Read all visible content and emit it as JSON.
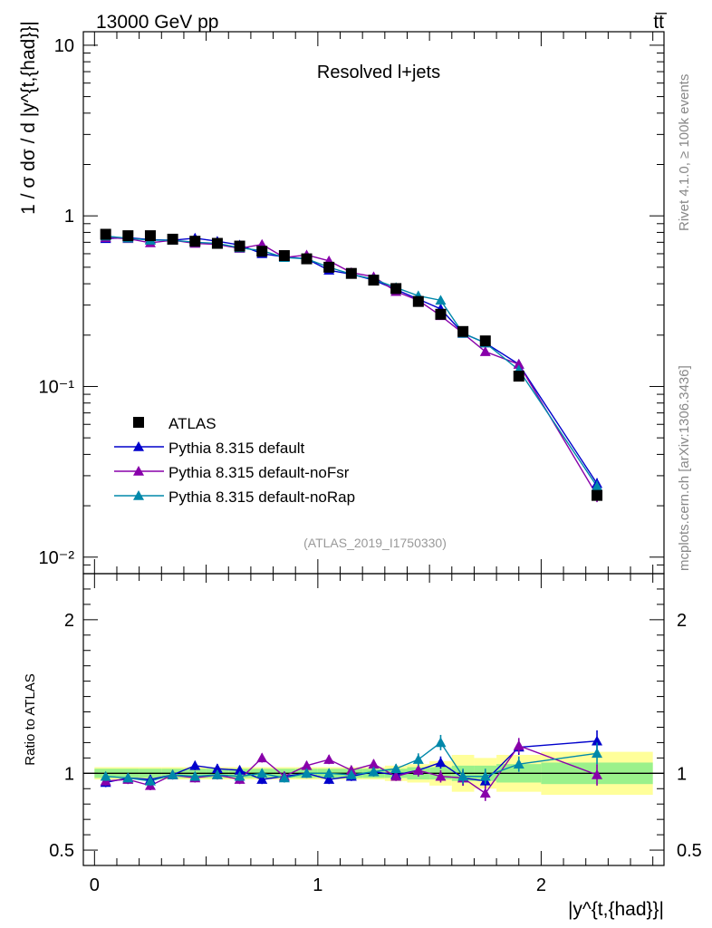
{
  "header": {
    "left": "13000 GeV pp",
    "right": "tt̅"
  },
  "side_text": {
    "rivet": "Rivet 4.1.0, ≥ 100k events",
    "mcplots": "mcplots.cern.ch [arXiv:1306.3436]"
  },
  "chart_data": [
    {
      "type": "scatter",
      "title": "Resolved l+jets",
      "analysis_tag": "(ATLAS_2019_I1750330)",
      "ylabel": "1 / σ dσ / d |y^{t,{had}}|",
      "yscale": "log",
      "ylim": [
        0.008,
        12
      ],
      "xlim": [
        -0.05,
        2.55
      ],
      "y_ticks": [
        {
          "value": 10,
          "label": "10"
        },
        {
          "value": 1,
          "label": "1"
        },
        {
          "value": 0.1,
          "label": "10⁻¹"
        },
        {
          "value": 0.01,
          "label": "10⁻²"
        }
      ],
      "legend_position": "lower-left",
      "x": [
        0.05,
        0.15,
        0.25,
        0.35,
        0.45,
        0.55,
        0.65,
        0.75,
        0.85,
        0.95,
        1.05,
        1.15,
        1.25,
        1.35,
        1.45,
        1.55,
        1.65,
        1.75,
        1.9,
        2.25
      ],
      "data": {
        "name": "ATLAS",
        "values": [
          0.78,
          0.765,
          0.765,
          0.73,
          0.71,
          0.69,
          0.665,
          0.62,
          0.585,
          0.56,
          0.5,
          0.46,
          0.42,
          0.375,
          0.315,
          0.265,
          0.21,
          0.185,
          0.115,
          0.023
        ],
        "errors": [
          0.03,
          0.03,
          0.03,
          0.03,
          0.03,
          0.03,
          0.02,
          0.02,
          0.02,
          0.02,
          0.02,
          0.02,
          0.015,
          0.015,
          0.012,
          0.012,
          0.01,
          0.01,
          0.006,
          0.0015
        ]
      },
      "series": [
        {
          "name": "Pythia 8.315 default",
          "color": "#0000cc",
          "values": [
            0.735,
            0.745,
            0.725,
            0.72,
            0.74,
            0.71,
            0.675,
            0.6,
            0.575,
            0.56,
            0.48,
            0.455,
            0.42,
            0.37,
            0.325,
            0.285,
            0.205,
            0.18,
            0.135,
            0.027
          ],
          "errors": [
            0.02,
            0.02,
            0.02,
            0.02,
            0.02,
            0.02,
            0.02,
            0.02,
            0.015,
            0.015,
            0.015,
            0.015,
            0.012,
            0.012,
            0.01,
            0.01,
            0.008,
            0.008,
            0.006,
            0.002
          ]
        },
        {
          "name": "Pythia 8.315 default-noFsr",
          "color": "#8800aa",
          "values": [
            0.745,
            0.735,
            0.695,
            0.72,
            0.69,
            0.68,
            0.645,
            0.68,
            0.57,
            0.59,
            0.545,
            0.465,
            0.44,
            0.36,
            0.32,
            0.26,
            0.205,
            0.16,
            0.135,
            0.023
          ],
          "errors": [
            0.02,
            0.02,
            0.02,
            0.02,
            0.02,
            0.02,
            0.02,
            0.02,
            0.015,
            0.015,
            0.015,
            0.015,
            0.012,
            0.012,
            0.01,
            0.01,
            0.008,
            0.008,
            0.006,
            0.002
          ]
        },
        {
          "name": "Pythia 8.315 default-noRap",
          "color": "#0088aa",
          "values": [
            0.76,
            0.74,
            0.72,
            0.72,
            0.7,
            0.69,
            0.65,
            0.625,
            0.57,
            0.56,
            0.5,
            0.455,
            0.425,
            0.38,
            0.34,
            0.32,
            0.205,
            0.18,
            0.125,
            0.026
          ],
          "errors": [
            0.02,
            0.02,
            0.02,
            0.02,
            0.02,
            0.02,
            0.02,
            0.02,
            0.015,
            0.015,
            0.015,
            0.015,
            0.012,
            0.012,
            0.01,
            0.01,
            0.008,
            0.008,
            0.006,
            0.002
          ]
        }
      ]
    },
    {
      "type": "scatter",
      "ylabel": "Ratio to ATLAS",
      "xlabel": "|y^{t,{had}}|",
      "xlim": [
        -0.05,
        2.55
      ],
      "ylim": [
        0.4,
        2.3
      ],
      "x_ticks": [
        {
          "value": 0,
          "label": "0"
        },
        {
          "value": 1,
          "label": "1"
        },
        {
          "value": 2,
          "label": "2"
        }
      ],
      "y_ticks": [
        {
          "value": 0.5,
          "label": "0.5"
        },
        {
          "value": 1,
          "label": "1"
        },
        {
          "value": 2,
          "label": "2"
        }
      ],
      "bins": [
        [
          0,
          0.1
        ],
        [
          0.1,
          0.2
        ],
        [
          0.2,
          0.3
        ],
        [
          0.3,
          0.4
        ],
        [
          0.4,
          0.5
        ],
        [
          0.5,
          0.6
        ],
        [
          0.6,
          0.7
        ],
        [
          0.7,
          0.8
        ],
        [
          0.8,
          0.9
        ],
        [
          0.9,
          1.0
        ],
        [
          1.0,
          1.1
        ],
        [
          1.1,
          1.2
        ],
        [
          1.2,
          1.3
        ],
        [
          1.3,
          1.4
        ],
        [
          1.4,
          1.5
        ],
        [
          1.5,
          1.6
        ],
        [
          1.6,
          1.7
        ],
        [
          1.7,
          1.8
        ],
        [
          1.8,
          2.0
        ],
        [
          2.0,
          2.5
        ]
      ],
      "stat_band": [
        0.03,
        0.03,
        0.03,
        0.03,
        0.03,
        0.03,
        0.03,
        0.03,
        0.03,
        0.03,
        0.03,
        0.03,
        0.03,
        0.03,
        0.04,
        0.04,
        0.05,
        0.05,
        0.06,
        0.07
      ],
      "total_band": [
        0.04,
        0.04,
        0.04,
        0.04,
        0.04,
        0.04,
        0.04,
        0.04,
        0.04,
        0.04,
        0.04,
        0.04,
        0.04,
        0.05,
        0.06,
        0.08,
        0.12,
        0.1,
        0.12,
        0.14
      ],
      "x": [
        0.05,
        0.15,
        0.25,
        0.35,
        0.45,
        0.55,
        0.65,
        0.75,
        0.85,
        0.95,
        1.05,
        1.15,
        1.25,
        1.35,
        1.45,
        1.55,
        1.65,
        1.75,
        1.9,
        2.25
      ],
      "series": [
        {
          "name": "Pythia 8.315 default",
          "color": "#0000cc",
          "values": [
            0.94,
            0.97,
            0.96,
            0.99,
            1.05,
            1.03,
            1.02,
            0.96,
            0.98,
            1.0,
            0.96,
            0.98,
            1.01,
            0.99,
            1.02,
            1.07,
            0.97,
            0.95,
            1.17,
            1.21
          ],
          "errors": [
            0.03,
            0.03,
            0.03,
            0.03,
            0.03,
            0.03,
            0.03,
            0.03,
            0.03,
            0.03,
            0.03,
            0.03,
            0.03,
            0.03,
            0.04,
            0.04,
            0.05,
            0.05,
            0.05,
            0.07
          ]
        },
        {
          "name": "Pythia 8.315 default-noFsr",
          "color": "#8800aa",
          "values": [
            0.95,
            0.96,
            0.92,
            0.99,
            0.97,
            0.99,
            0.96,
            1.1,
            0.98,
            1.05,
            1.09,
            1.02,
            1.06,
            0.98,
            1.02,
            0.98,
            0.97,
            0.87,
            1.18,
            0.99
          ],
          "errors": [
            0.03,
            0.03,
            0.03,
            0.03,
            0.03,
            0.03,
            0.03,
            0.03,
            0.03,
            0.03,
            0.03,
            0.03,
            0.03,
            0.03,
            0.04,
            0.04,
            0.05,
            0.05,
            0.05,
            0.07
          ]
        },
        {
          "name": "Pythia 8.315 default-noRap",
          "color": "#0088aa",
          "values": [
            0.98,
            0.97,
            0.95,
            0.99,
            0.98,
            0.99,
            0.98,
            1.0,
            0.97,
            1.0,
            1.0,
            0.99,
            1.01,
            1.03,
            1.09,
            1.2,
            0.98,
            0.98,
            1.06,
            1.13
          ],
          "errors": [
            0.03,
            0.03,
            0.03,
            0.03,
            0.03,
            0.03,
            0.03,
            0.03,
            0.03,
            0.03,
            0.03,
            0.03,
            0.03,
            0.03,
            0.04,
            0.05,
            0.05,
            0.05,
            0.05,
            0.07
          ]
        }
      ]
    }
  ]
}
